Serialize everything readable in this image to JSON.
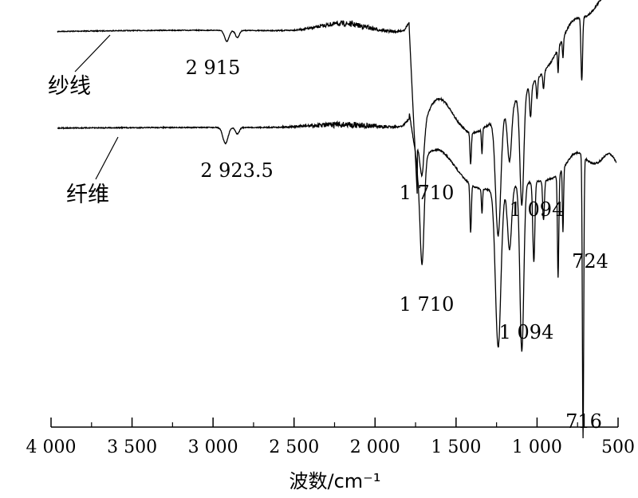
{
  "chart_data": {
    "type": "line",
    "title": "",
    "xlabel": "波数/cm⁻¹",
    "ylabel": "",
    "xlim": [
      4000,
      500
    ],
    "x_reversed": true,
    "grid": false,
    "x_ticks": [
      4000,
      3500,
      3000,
      2500,
      2000,
      1500,
      1000,
      500
    ],
    "x_tick_labels": [
      "4 000",
      "3 500",
      "3 000",
      "2 500",
      "2 000",
      "1 500",
      "1 000",
      "500"
    ],
    "series": [
      {
        "name": "纱线",
        "key": "yarn",
        "peak_labels": [
          {
            "x": 2915,
            "text": "2 915"
          },
          {
            "x": 1710,
            "text": "1 710"
          },
          {
            "x": 1094,
            "text": "1 094"
          },
          {
            "x": 724,
            "text": "724"
          }
        ]
      },
      {
        "name": "纤维",
        "key": "fiber",
        "peak_labels": [
          {
            "x": 2923.5,
            "text": "2 923.5"
          },
          {
            "x": 1710,
            "text": "1 710"
          },
          {
            "x": 1094,
            "text": "1 094"
          },
          {
            "x": 716,
            "text": "716"
          }
        ]
      }
    ]
  }
}
